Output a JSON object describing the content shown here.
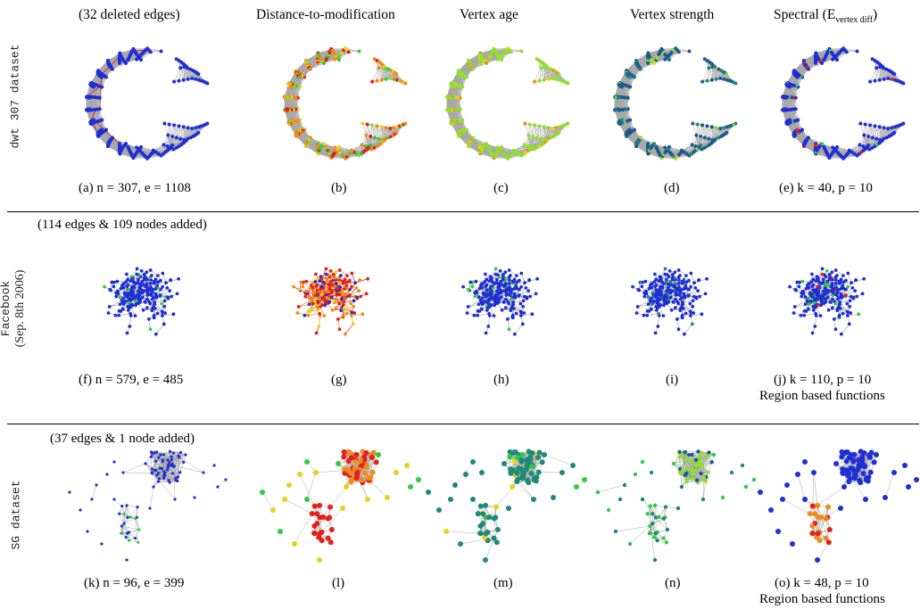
{
  "column_titles": [
    "(32 deleted edges)",
    "Distance-to-modification",
    "Vertex age",
    "Vertex strength",
    "Spectral (E"
  ],
  "spectral_subscript": "vertex diff",
  "spectral_close": ")",
  "row_labels": {
    "row1": "dwt 307 dataset",
    "row2_mono": "Facebook",
    "row2_serif": "(Sep. 8th 2006)",
    "row3": "SG dataset"
  },
  "row_notes": {
    "row2": "(114 edges & 109 nodes added)",
    "row3": "(37 edges & 1 node added)"
  },
  "captions": {
    "a": "(a) n = 307, e = 1108",
    "b": "(b)",
    "c": "(c)",
    "d": "(d)",
    "e": "(e) k = 40, p = 10",
    "f": "(f) n = 579, e = 485",
    "g": "(g)",
    "h": "(h)",
    "i": "(i)",
    "j": "(j) k = 110, p = 10",
    "k": "(k) n = 96, e = 399",
    "l": "(l)",
    "m": "(m)",
    "n": "(n)",
    "o": "(o) k = 48, p = 10"
  },
  "region_note": "Region based functions",
  "colors": {
    "edge": "#a8a8a8",
    "blue": "#1f2fd6",
    "red": "#e3201b",
    "orange": "#f08a1c",
    "yellow": "#e6d21c",
    "lime": "#8fe02a",
    "green": "#2ecc40",
    "teal": "#1f8a7a",
    "steel": "#1f5a8f"
  }
}
